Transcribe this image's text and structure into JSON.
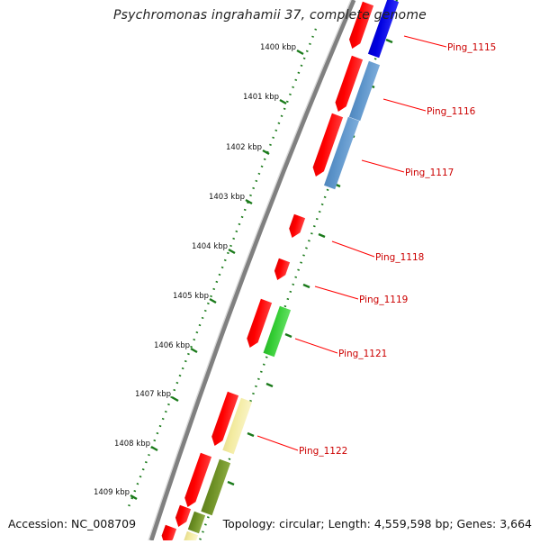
{
  "title": "Psychromonas ingrahamii 37, complete genome",
  "accession": "Accession: NC_008709",
  "topology": "Topology: circular; Length: 4,559,598 bp; Genes: 3,664",
  "kbp_labels": [
    "1400 kbp",
    "1401 kbp",
    "1402 kbp",
    "1403 kbp",
    "1404 kbp",
    "1405 kbp",
    "1406 kbp",
    "1407 kbp",
    "1408 kbp",
    "1409 kbp"
  ],
  "gene_labels": [
    "Ping_1115",
    "Ping_1116",
    "Ping_1117",
    "Ping_1118",
    "Ping_1119",
    "Ping_1121",
    "Ping_1122"
  ],
  "colors": {
    "backbone": "#808080",
    "cds": "#ff0000",
    "blue": "#0000e0",
    "steelblue": "#5b93c9",
    "green": "#33cc33",
    "khaki": "#f3eba0",
    "olive": "#6b8e23",
    "tick": "#1a7a1a",
    "label_line": "#ff0000",
    "label_text": "#cc0000"
  }
}
